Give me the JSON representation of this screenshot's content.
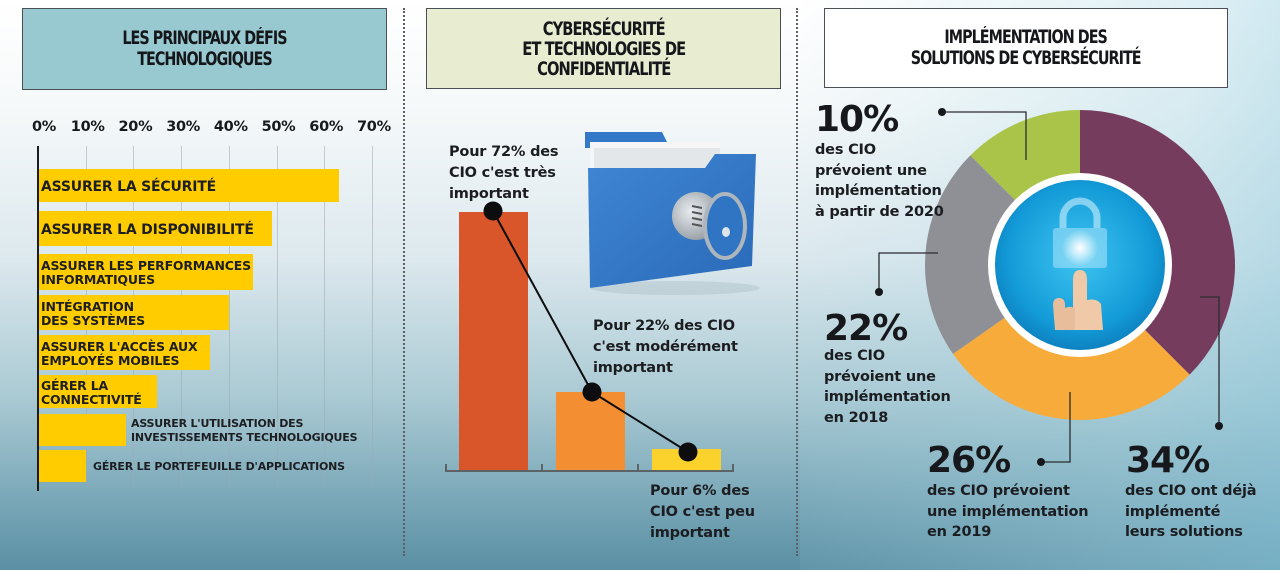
{
  "panels": {
    "left": {
      "title": "LES PRINCIPAUX DÉFIS\nTECHNOLOGIQUES",
      "title_bg": "#98c8d0"
    },
    "middle": {
      "title": "CYBERSÉCURITÉ\nET TECHNOLOGIES DE\nCONFIDENTIALITÉ",
      "title_bg": "#e8ecd0",
      "labels": {
        "very": "Pour 72% des\nCIO c'est très\nimportant",
        "moderate": "Pour 22% des CIO\nc'est modérément\nimportant",
        "low": "Pour 6% des\nCIO c'est peu\nimportant"
      },
      "illustration": "folder-with-key"
    },
    "right": {
      "title": "IMPLÉMENTATION DES\nSOLUTIONS DE CYBERSÉCURITÉ",
      "title_bg": "#ffffff",
      "callouts": [
        {
          "pct": "10%",
          "desc": "des CIO\nprévoient une\nimplémentation\nà partir de 2020"
        },
        {
          "pct": "22%",
          "desc": "des CIO\nprévoient une\nimplémentation\nen 2018"
        },
        {
          "pct": "26%",
          "desc": "des CIO prévoient\nune implémentation\nen 2019"
        },
        {
          "pct": "34%",
          "desc": "des CIO ont déjà\nimplémenté\nleurs solutions"
        }
      ],
      "center_illustration": "hand-touching-padlock"
    }
  },
  "chart_data": [
    {
      "type": "bar",
      "orientation": "horizontal",
      "title": "LES PRINCIPAUX DÉFIS TECHNOLOGIQUES",
      "xlabel": "",
      "ylabel": "",
      "xlim": [
        0,
        70
      ],
      "x_ticks": [
        "0%",
        "10%",
        "20%",
        "30%",
        "40%",
        "50%",
        "60%",
        "70%"
      ],
      "grid": true,
      "categories": [
        "ASSURER LA SÉCURITÉ",
        "ASSURER LA DISPONIBILITÉ",
        "ASSURER LES PERFORMANCES INFORMATIQUES",
        "INTÉGRATION DES SYSTÈMES",
        "ASSURER L'ACCÈS AUX EMPLOYÉS MOBILES",
        "GÉRER LA CONNECTIVITÉ",
        "ASSURER L'UTILISATION DES INVESTISSEMENTS TECHNOLOGIQUES",
        "GÉRER LE PORTEFEUILLE D'APPLICATIONS"
      ],
      "labels_display": [
        "ASSURER LA SÉCURITÉ",
        "ASSURER LA DISPONIBILITÉ",
        "ASSURER LES PERFORMANCES\nINFORMATIQUES",
        "INTÉGRATION\nDES SYSTÈMES",
        "ASSURER L'ACCÈS AUX\nEMPLOYÉS MOBILES",
        "GÉRER LA\nCONNECTIVITÉ",
        "ASSURER L'UTILISATION DES\nINVESTISSEMENTS TECHNOLOGIQUES",
        "GÉRER LE PORTEFEUILLE D'APPLICATIONS"
      ],
      "values": [
        63,
        49,
        45,
        40,
        36,
        25,
        18.5,
        10
      ],
      "color": "#ffcc00"
    },
    {
      "type": "bar",
      "orientation": "vertical",
      "title": "CYBERSÉCURITÉ ET TECHNOLOGIES DE CONFIDENTIALITÉ",
      "categories": [
        "très important",
        "modérément important",
        "peu important"
      ],
      "values": [
        72,
        22,
        6
      ],
      "unit": "%",
      "colors": [
        "#d9552a",
        "#f48e32",
        "#fbd12c"
      ],
      "overlay_line": true
    },
    {
      "type": "pie",
      "variant": "donut",
      "title": "IMPLÉMENTATION DES SOLUTIONS DE CYBERSÉCURITÉ",
      "categories": [
        "Déjà implémenté",
        "Implémentation en 2019",
        "Implémentation en 2018",
        "Implémentation à partir de 2020"
      ],
      "values": [
        34,
        26,
        22,
        10
      ],
      "unit": "%",
      "colors": [
        "#763c5e",
        "#f7ab3b",
        "#8e9095",
        "#aac44a"
      ]
    }
  ]
}
